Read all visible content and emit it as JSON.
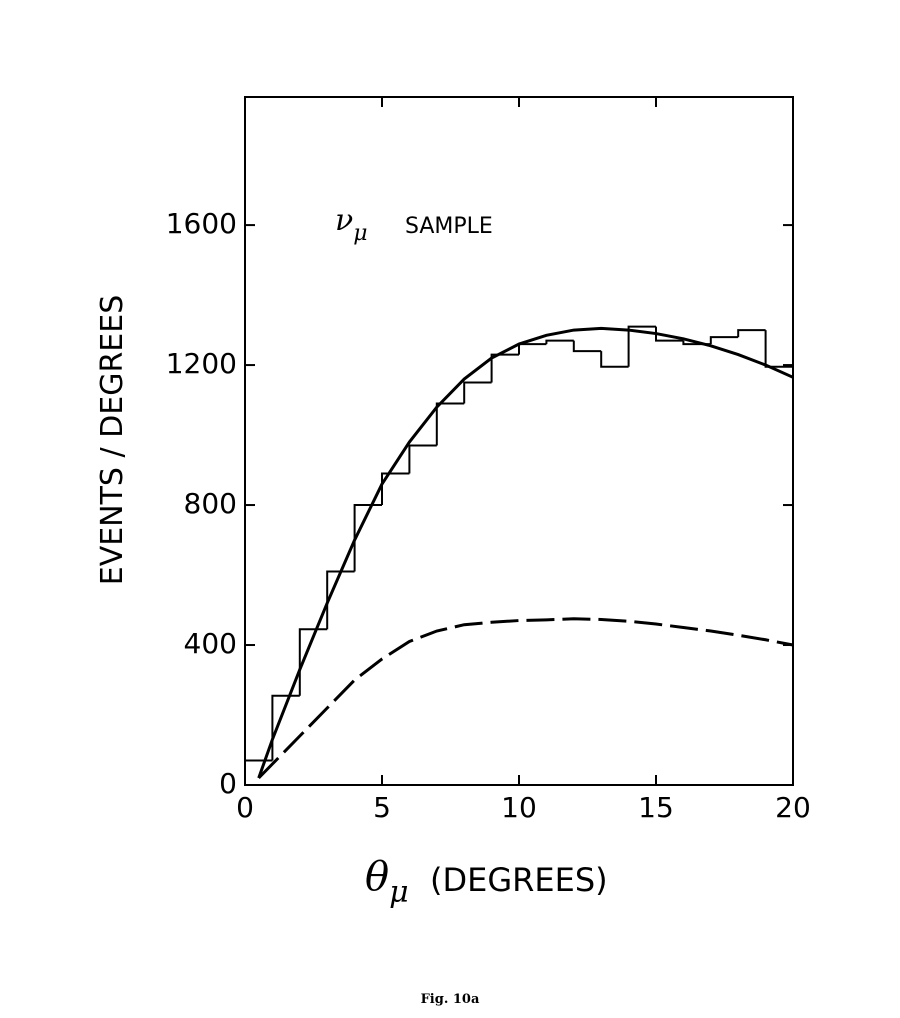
{
  "chart_data": {
    "type": "histogram",
    "annotation": {
      "symbol": "ν",
      "subscript": "μ",
      "text": "SAMPLE"
    },
    "x_label": {
      "symbol": "θ",
      "subscript": "μ",
      "text": "(DEGREES)"
    },
    "y_label": "EVENTS / DEGREES",
    "caption": "Fig. 10a",
    "bins": [
      0,
      1,
      2,
      3,
      4,
      5,
      6,
      7,
      8,
      9,
      10,
      11,
      12,
      13,
      14,
      15,
      16,
      17,
      18,
      19,
      20
    ],
    "counts": [
      70,
      255,
      445,
      610,
      800,
      890,
      970,
      1090,
      1150,
      1230,
      1260,
      1270,
      1240,
      1195,
      1310,
      1270,
      1260,
      1280,
      1300,
      1195
    ],
    "color": "#000000",
    "series": [
      {
        "color": "#000000",
        "dashed": false,
        "x": [
          0.5,
          1,
          2,
          3,
          4,
          5,
          6,
          7,
          8,
          9,
          10,
          11,
          12,
          13,
          14,
          15,
          16,
          17,
          18,
          19,
          20
        ],
        "values": [
          20,
          130,
          330,
          520,
          700,
          860,
          980,
          1080,
          1160,
          1220,
          1260,
          1285,
          1300,
          1305,
          1300,
          1290,
          1275,
          1255,
          1230,
          1200,
          1165
        ]
      },
      {
        "color": "#000000",
        "dashed": true,
        "x": [
          0.5,
          1,
          2,
          3,
          4,
          5,
          6,
          7,
          8,
          9,
          10,
          11,
          12,
          13,
          14,
          15,
          16,
          17,
          18,
          19,
          20
        ],
        "values": [
          20,
          60,
          140,
          220,
          300,
          360,
          410,
          440,
          458,
          465,
          470,
          472,
          475,
          473,
          468,
          460,
          450,
          440,
          428,
          415,
          400
        ]
      }
    ],
    "xlim": [
      0,
      20
    ],
    "xticks": [
      0,
      5,
      10,
      15,
      20
    ],
    "ylim": [
      0,
      1966
    ],
    "yticks": [
      0,
      400,
      800,
      1200,
      1600
    ]
  }
}
